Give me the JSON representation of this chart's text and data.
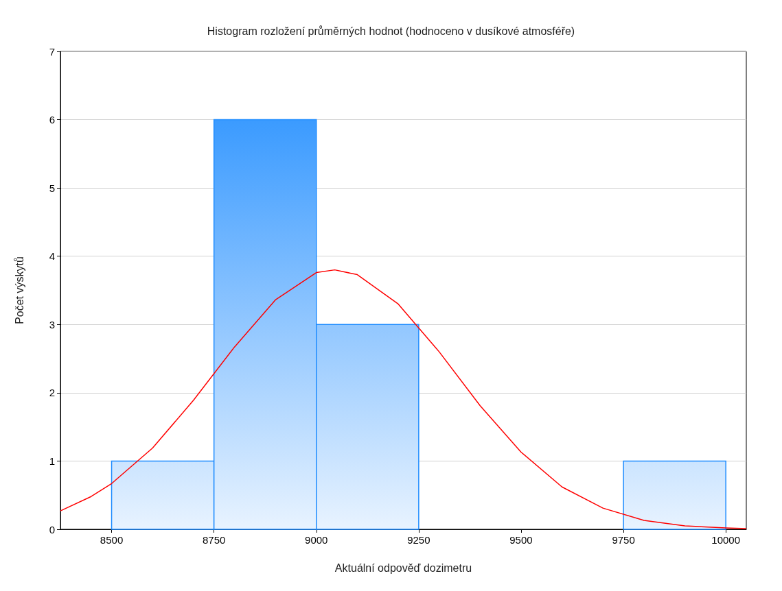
{
  "chart_data": {
    "type": "histogram",
    "title": "Histogram rozložení průměrných hodnot (hodnoceno v dusíkové atmosféře)",
    "xlabel": "Aktuální odpověď dozimetru",
    "ylabel": "Počet výskytů",
    "bins": [
      8500,
      8750,
      9000,
      9250,
      9500,
      9750,
      10000
    ],
    "values": [
      1,
      6,
      3,
      0,
      0,
      1
    ],
    "color": "#1e8cff",
    "series": [
      {
        "type": "line",
        "color": "#ff0000",
        "x": [
          8375,
          8450,
          8500,
          8600,
          8700,
          8800,
          8900,
          9000,
          9045,
          9100,
          9200,
          9300,
          9400,
          9500,
          9600,
          9700,
          9800,
          9900,
          10000,
          10050
        ],
        "values": [
          0.27,
          0.48,
          0.67,
          1.19,
          1.89,
          2.67,
          3.36,
          3.76,
          3.8,
          3.73,
          3.3,
          2.6,
          1.81,
          1.13,
          0.62,
          0.31,
          0.13,
          0.05,
          0.02,
          0.01
        ]
      }
    ],
    "xlim": [
      8375,
      10050
    ],
    "xticks": [
      8500,
      8750,
      9000,
      9250,
      9500,
      9750,
      10000
    ],
    "ylim": [
      0,
      7
    ],
    "yticks": [
      0,
      1,
      2,
      3,
      4,
      5,
      6,
      7
    ],
    "grid": "y",
    "marker": "none",
    "line_style": "solid"
  }
}
